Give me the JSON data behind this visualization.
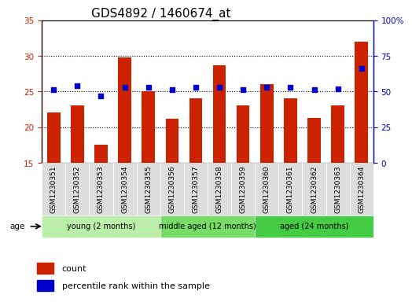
{
  "title": "GDS4892 / 1460674_at",
  "samples": [
    "GSM1230351",
    "GSM1230352",
    "GSM1230353",
    "GSM1230354",
    "GSM1230355",
    "GSM1230356",
    "GSM1230357",
    "GSM1230358",
    "GSM1230359",
    "GSM1230360",
    "GSM1230361",
    "GSM1230362",
    "GSM1230363",
    "GSM1230364"
  ],
  "counts": [
    22.0,
    23.0,
    17.5,
    29.8,
    25.0,
    21.2,
    24.0,
    28.7,
    23.0,
    26.0,
    24.0,
    21.3,
    23.0,
    32.0
  ],
  "percentile_ranks": [
    51,
    54,
    47,
    53,
    53,
    51,
    53,
    53,
    51,
    53,
    53,
    51,
    52,
    66
  ],
  "ylim_left": [
    15,
    35
  ],
  "ylim_right": [
    0,
    100
  ],
  "yticks_left": [
    15,
    20,
    25,
    30,
    35
  ],
  "yticks_right": [
    0,
    25,
    50,
    75,
    100
  ],
  "ytick_labels_right": [
    "0",
    "25",
    "50",
    "75",
    "100%"
  ],
  "bar_color": "#cc2200",
  "dot_color": "#0000cc",
  "bar_bottom": 15,
  "groups": [
    {
      "label": "young (2 months)",
      "start": 0,
      "end": 5,
      "color": "#bbeeaa"
    },
    {
      "label": "middle aged (12 months)",
      "start": 5,
      "end": 9,
      "color": "#77dd66"
    },
    {
      "label": "aged (24 months)",
      "start": 9,
      "end": 14,
      "color": "#44cc44"
    }
  ],
  "legend_count_label": "count",
  "legend_percentile_label": "percentile rank within the sample",
  "age_label": "age",
  "grid_yticks": [
    20,
    25,
    30
  ],
  "title_fontsize": 11,
  "tick_fontsize": 7.5,
  "label_fontsize": 6.5,
  "background_color": "#ffffff",
  "sample_box_color": "#dddddd"
}
